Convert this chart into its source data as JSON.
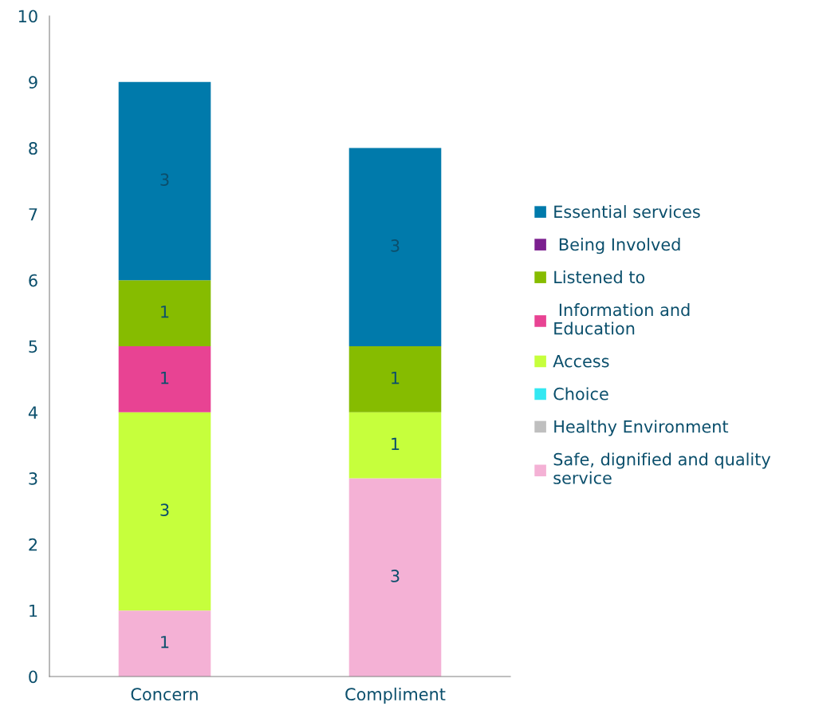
{
  "chart_data": {
    "type": "bar",
    "stacked": true,
    "categories": [
      "Concern",
      "Compliment"
    ],
    "series": [
      {
        "name": "Safe, dignified and quality\nservice",
        "color": "#f4b1d5",
        "values": [
          1,
          3
        ]
      },
      {
        "name": "Healthy Environment",
        "color": "#bfbfbf",
        "values": [
          null,
          null
        ]
      },
      {
        "name": "Choice",
        "color": "#33e8f2",
        "values": [
          null,
          null
        ]
      },
      {
        "name": "Access",
        "color": "#c6ff3c",
        "values": [
          3,
          1
        ]
      },
      {
        "name": " Information and\nEducation",
        "color": "#e84393",
        "values": [
          1,
          null
        ]
      },
      {
        "name": "Listened to",
        "color": "#86bc00",
        "values": [
          1,
          1
        ]
      },
      {
        "name": " Being Involved",
        "color": "#7b1f8f",
        "values": [
          null,
          null
        ]
      },
      {
        "name": "Essential services",
        "color": "#007aab",
        "values": [
          3,
          3
        ]
      }
    ],
    "ylim": [
      0,
      10
    ],
    "yticks": [
      0,
      1,
      2,
      3,
      4,
      5,
      6,
      7,
      8,
      9,
      10
    ],
    "data_labels": true,
    "legend": "right",
    "grid": false
  }
}
